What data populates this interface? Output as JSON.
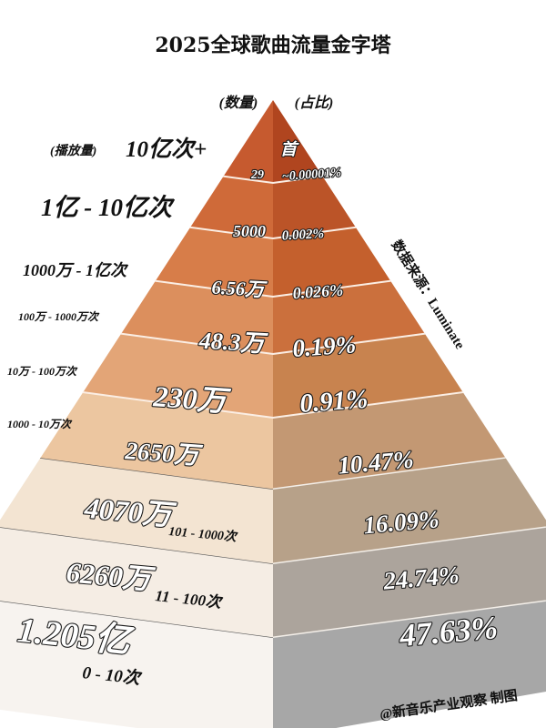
{
  "chart_data": {
    "type": "pyramid",
    "title": "2025全球歌曲流量金字塔",
    "column_headers": {
      "count": "(数量)",
      "share": "(占比)"
    },
    "range_prefix": "(播放量)",
    "tiers": [
      {
        "range": "10亿次+",
        "count": "29",
        "count_prefix": "首",
        "share": "~0.00001%"
      },
      {
        "range": "1亿 - 10亿次",
        "count": "5000",
        "share": "0.002%"
      },
      {
        "range": "1000万 - 1亿次",
        "count": "6.56万",
        "share": "0.026%"
      },
      {
        "range": "100万 - 1000万次",
        "count": "48.3万",
        "share": "0.19%"
      },
      {
        "range": "10万 - 100万次",
        "count": "230万",
        "share": "0.91%"
      },
      {
        "range": "1000 - 10万次",
        "count": "2650万",
        "share": "10.47%"
      },
      {
        "range": "101 - 1000次",
        "count": "4070万",
        "share": "16.09%"
      },
      {
        "range": "11 - 100次",
        "count": "6260万",
        "share": "24.74%"
      },
      {
        "range": "0 - 10次",
        "count": "1.205亿",
        "share": "47.63%"
      }
    ],
    "source": "数据来源：Luminate",
    "credit": "@新音乐产业观察  制图",
    "colors": {
      "left": [
        "#c65a2f",
        "#cf6a39",
        "#d77d49",
        "#dc8f5d",
        "#e3a577",
        "#ecc6a0",
        "#f3e4d2",
        "#f5ede4",
        "#f7f3ef"
      ],
      "right": [
        "#b0451f",
        "#bb5428",
        "#c4602d",
        "#cb703d",
        "#c8834f",
        "#c39873",
        "#b7a189",
        "#aca49c",
        "#a7a7a7"
      ]
    }
  }
}
